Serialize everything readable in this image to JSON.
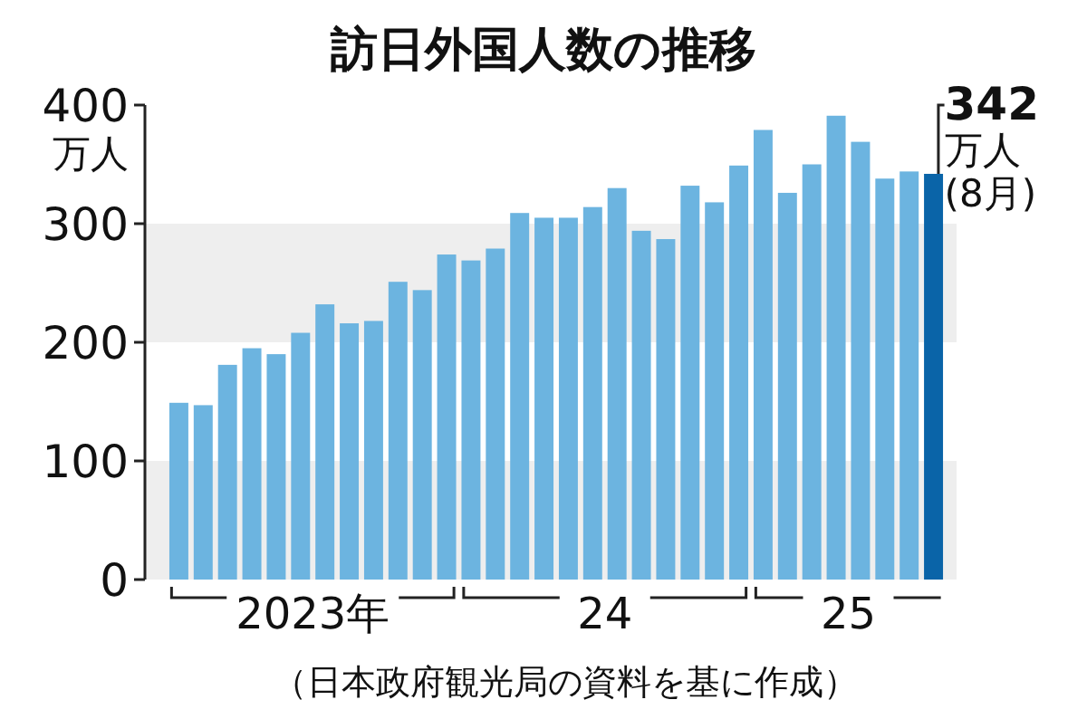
{
  "chart_data": {
    "type": "bar",
    "title": "訪日外国人数の推移",
    "ylabel": "万人",
    "categories": [
      null,
      null,
      null,
      null,
      null,
      null,
      null,
      null,
      null,
      null,
      null,
      null,
      null,
      null,
      null,
      null,
      null,
      null,
      null,
      null,
      null,
      null,
      null,
      null,
      null,
      null,
      null,
      null,
      null,
      null,
      null,
      null
    ],
    "values": [
      149,
      147,
      181,
      195,
      190,
      208,
      232,
      216,
      218,
      251,
      244,
      274,
      269,
      279,
      309,
      305,
      305,
      314,
      330,
      294,
      287,
      332,
      318,
      349,
      379,
      326,
      350,
      391,
      369,
      338,
      344,
      342
    ],
    "colors": [
      "#6cb4e0",
      "#6cb4e0",
      "#6cb4e0",
      "#6cb4e0",
      "#6cb4e0",
      "#6cb4e0",
      "#6cb4e0",
      "#6cb4e0",
      "#6cb4e0",
      "#6cb4e0",
      "#6cb4e0",
      "#6cb4e0",
      "#6cb4e0",
      "#6cb4e0",
      "#6cb4e0",
      "#6cb4e0",
      "#6cb4e0",
      "#6cb4e0",
      "#6cb4e0",
      "#6cb4e0",
      "#6cb4e0",
      "#6cb4e0",
      "#6cb4e0",
      "#6cb4e0",
      "#6cb4e0",
      "#6cb4e0",
      "#6cb4e0",
      "#6cb4e0",
      "#6cb4e0",
      "#6cb4e0",
      "#6cb4e0",
      "#0a64a8"
    ],
    "value_labels": [
      null,
      null,
      null,
      null,
      null,
      null,
      null,
      null,
      null,
      null,
      null,
      null,
      null,
      null,
      null,
      null,
      null,
      null,
      null,
      null,
      null,
      null,
      null,
      null,
      null,
      null,
      null,
      null,
      null,
      null,
      null,
      "342\n万人\n(8月)"
    ],
    "ylim": [
      0,
      400
    ],
    "yticks": [
      0,
      100,
      200,
      300,
      400
    ],
    "bands": [
      {
        "axis": "y",
        "from": 0,
        "to": 100,
        "color": "#eeeeee"
      },
      {
        "axis": "y",
        "from": 200,
        "to": 300,
        "color": "#eeeeee"
      }
    ],
    "annotations": [
      "2023年",
      "24",
      "25",
      "（日本政府観光局の資料を基に作成）"
    ],
    "grid": false
  }
}
